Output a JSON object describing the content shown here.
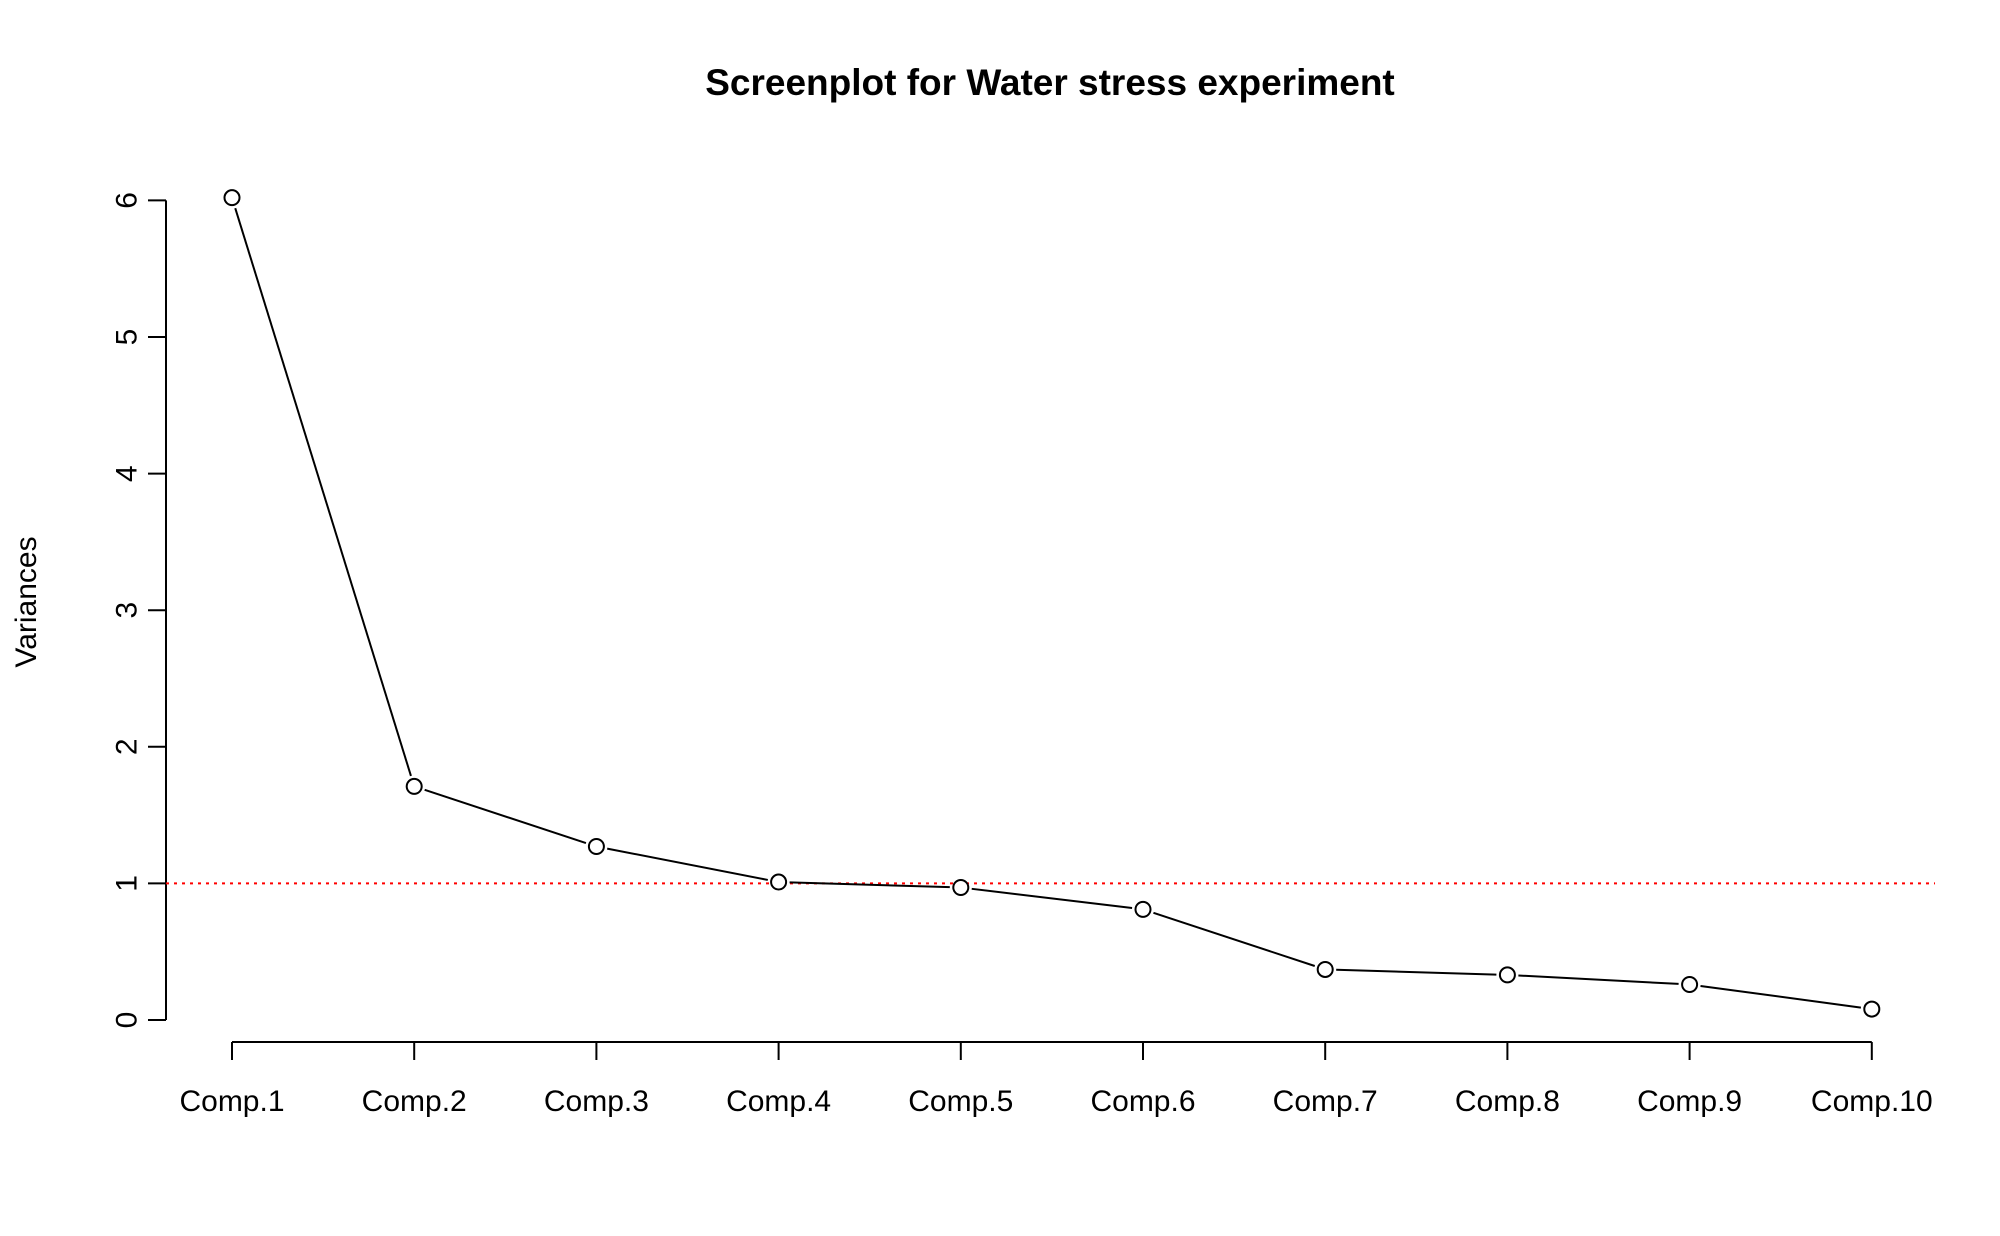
{
  "chart_data": {
    "type": "line",
    "title": "Screenplot for Water stress experiment",
    "xlabel": "",
    "ylabel": "Variances",
    "categories": [
      "Comp.1",
      "Comp.2",
      "Comp.3",
      "Comp.4",
      "Comp.5",
      "Comp.6",
      "Comp.7",
      "Comp.8",
      "Comp.9",
      "Comp.10"
    ],
    "values": [
      6.02,
      1.71,
      1.27,
      1.01,
      0.97,
      0.81,
      0.37,
      0.33,
      0.26,
      0.08
    ],
    "yticks": [
      0,
      1,
      2,
      3,
      4,
      5,
      6
    ],
    "ylim": [
      0,
      6
    ],
    "reference_line": {
      "y": 1,
      "color": "#ff0000",
      "style": "dotted"
    },
    "grid": false,
    "legend": "none"
  }
}
